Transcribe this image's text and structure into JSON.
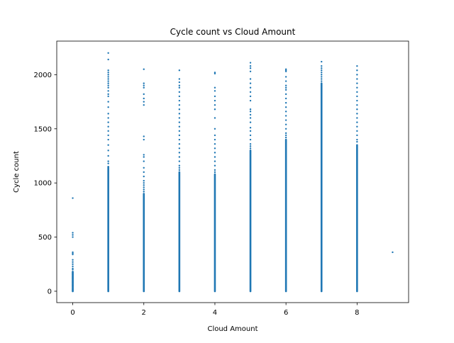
{
  "chart_data": {
    "type": "scatter",
    "title": "Cycle count vs Cloud Amount",
    "xlabel": "Cloud Amount",
    "ylabel": "Cycle count",
    "xlim": [
      -0.45,
      9.45
    ],
    "ylim": [
      -105,
      2310
    ],
    "xticks": [
      0,
      2,
      4,
      6,
      8
    ],
    "yticks": [
      0,
      500,
      1000,
      1500,
      2000
    ],
    "grid": false,
    "marker_color": "#1f77b4",
    "series": [
      {
        "x_categories": [
          0,
          1,
          2,
          3,
          4,
          5,
          6,
          7,
          8,
          9
        ],
        "columns": [
          {
            "x": 0,
            "dense_max": 180,
            "outliers": [
              200,
              210,
              230,
              250,
              270,
              290,
              340,
              350,
              360,
              500,
              520,
              540,
              860
            ]
          },
          {
            "x": 1,
            "dense_max": 1150,
            "outliers": [
              1180,
              1200,
              1250,
              1300,
              1350,
              1400,
              1440,
              1480,
              1520,
              1560,
              1600,
              1640,
              1700,
              1750,
              1800,
              1820,
              1850,
              1880,
              1900,
              1920,
              1940,
              1960,
              1980,
              2000,
              2020,
              2040,
              2140,
              2200
            ]
          },
          {
            "x": 2,
            "dense_max": 900,
            "outliers": [
              920,
              940,
              960,
              980,
              1000,
              1020,
              1060,
              1100,
              1140,
              1200,
              1240,
              1260,
              1400,
              1430,
              1720,
              1750,
              1780,
              1820,
              1880,
              1900,
              1920,
              2050
            ]
          },
          {
            "x": 3,
            "dense_max": 1100,
            "outliers": [
              1120,
              1140,
              1160,
              1200,
              1240,
              1280,
              1320,
              1360,
              1400,
              1440,
              1480,
              1520,
              1560,
              1600,
              1640,
              1680,
              1720,
              1760,
              1800,
              1840,
              1880,
              1900,
              1930,
              1960,
              2040
            ]
          },
          {
            "x": 4,
            "dense_max": 1080,
            "outliers": [
              1100,
              1120,
              1160,
              1200,
              1240,
              1280,
              1320,
              1360,
              1400,
              1440,
              1500,
              1600,
              1680,
              1720,
              1760,
              1800,
              1850,
              1880,
              2010,
              2020
            ]
          },
          {
            "x": 5,
            "dense_max": 1300,
            "outliers": [
              1320,
              1340,
              1360,
              1400,
              1440,
              1480,
              1510,
              1560,
              1600,
              1630,
              1660,
              1680,
              1760,
              1800,
              1840,
              1880,
              1920,
              1960,
              2030,
              2060,
              2080,
              2110
            ]
          },
          {
            "x": 6,
            "dense_max": 1400,
            "outliers": [
              1420,
              1440,
              1460,
              1500,
              1540,
              1580,
              1620,
              1660,
              1700,
              1740,
              1780,
              1820,
              1860,
              1880,
              1900,
              1940,
              1980,
              2030,
              2040,
              2050
            ]
          },
          {
            "x": 7,
            "dense_max": 1920,
            "outliers": [
              1940,
              1960,
              1980,
              2000,
              2020,
              2040,
              2060,
              2080,
              2120
            ]
          },
          {
            "x": 8,
            "dense_max": 1350,
            "outliers": [
              1380,
              1400,
              1440,
              1480,
              1520,
              1560,
              1600,
              1640,
              1680,
              1720,
              1760,
              1800,
              1840,
              1880,
              1920,
              1960,
              2000,
              2040,
              2080
            ]
          },
          {
            "x": 9,
            "dense_max": null,
            "outliers": [
              360
            ]
          }
        ]
      }
    ]
  }
}
